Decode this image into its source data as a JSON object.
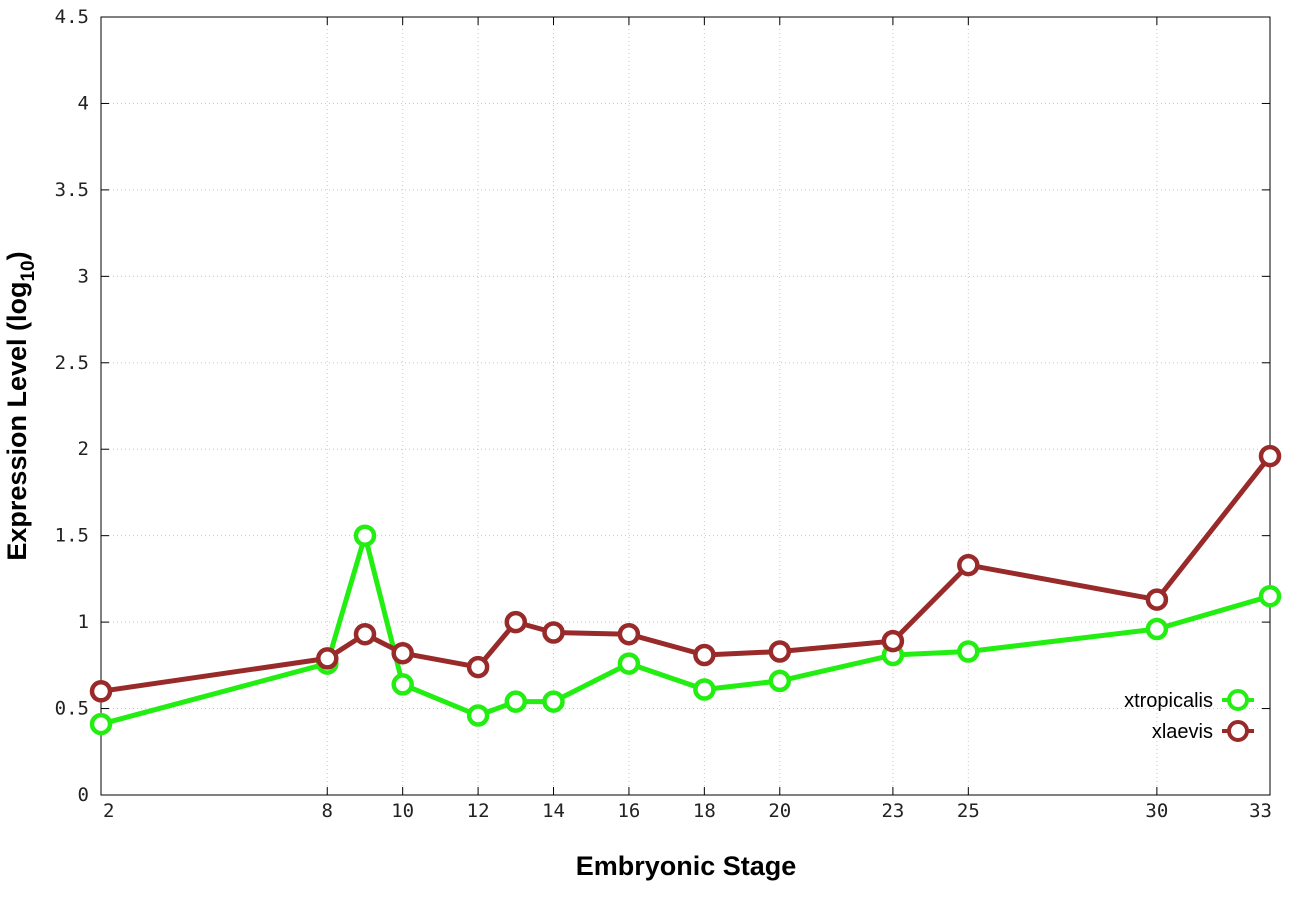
{
  "chart_data": {
    "type": "line",
    "xlabel": "Embryonic Stage",
    "ylabel": "Expression Level (log",
    "ylabel_sub": "10",
    "ylabel_suffix": ")",
    "x": [
      2,
      8,
      9,
      10,
      12,
      13,
      14,
      16,
      18,
      20,
      23,
      25,
      30,
      33
    ],
    "xticks": [
      2,
      8,
      10,
      12,
      14,
      16,
      18,
      20,
      23,
      25,
      30,
      33
    ],
    "xlim": [
      2,
      33
    ],
    "ylim": [
      0,
      4.5
    ],
    "yticks": [
      "0",
      "0.5",
      "1",
      "1.5",
      "2",
      "2.5",
      "3",
      "3.5",
      "4",
      "4.5"
    ],
    "grid": true,
    "legend_position": "bottom-right",
    "series": [
      {
        "name": "xtropicalis",
        "color": "#22ee11",
        "values": [
          0.41,
          0.76,
          1.5,
          0.64,
          0.46,
          0.54,
          0.54,
          0.76,
          0.61,
          0.66,
          0.81,
          0.83,
          0.96,
          1.15
        ]
      },
      {
        "name": "xlaevis",
        "color": "#992a2a",
        "values": [
          0.6,
          0.79,
          0.93,
          0.82,
          0.74,
          1.0,
          0.94,
          0.93,
          0.81,
          0.83,
          0.89,
          1.33,
          1.13,
          1.96
        ]
      }
    ]
  }
}
